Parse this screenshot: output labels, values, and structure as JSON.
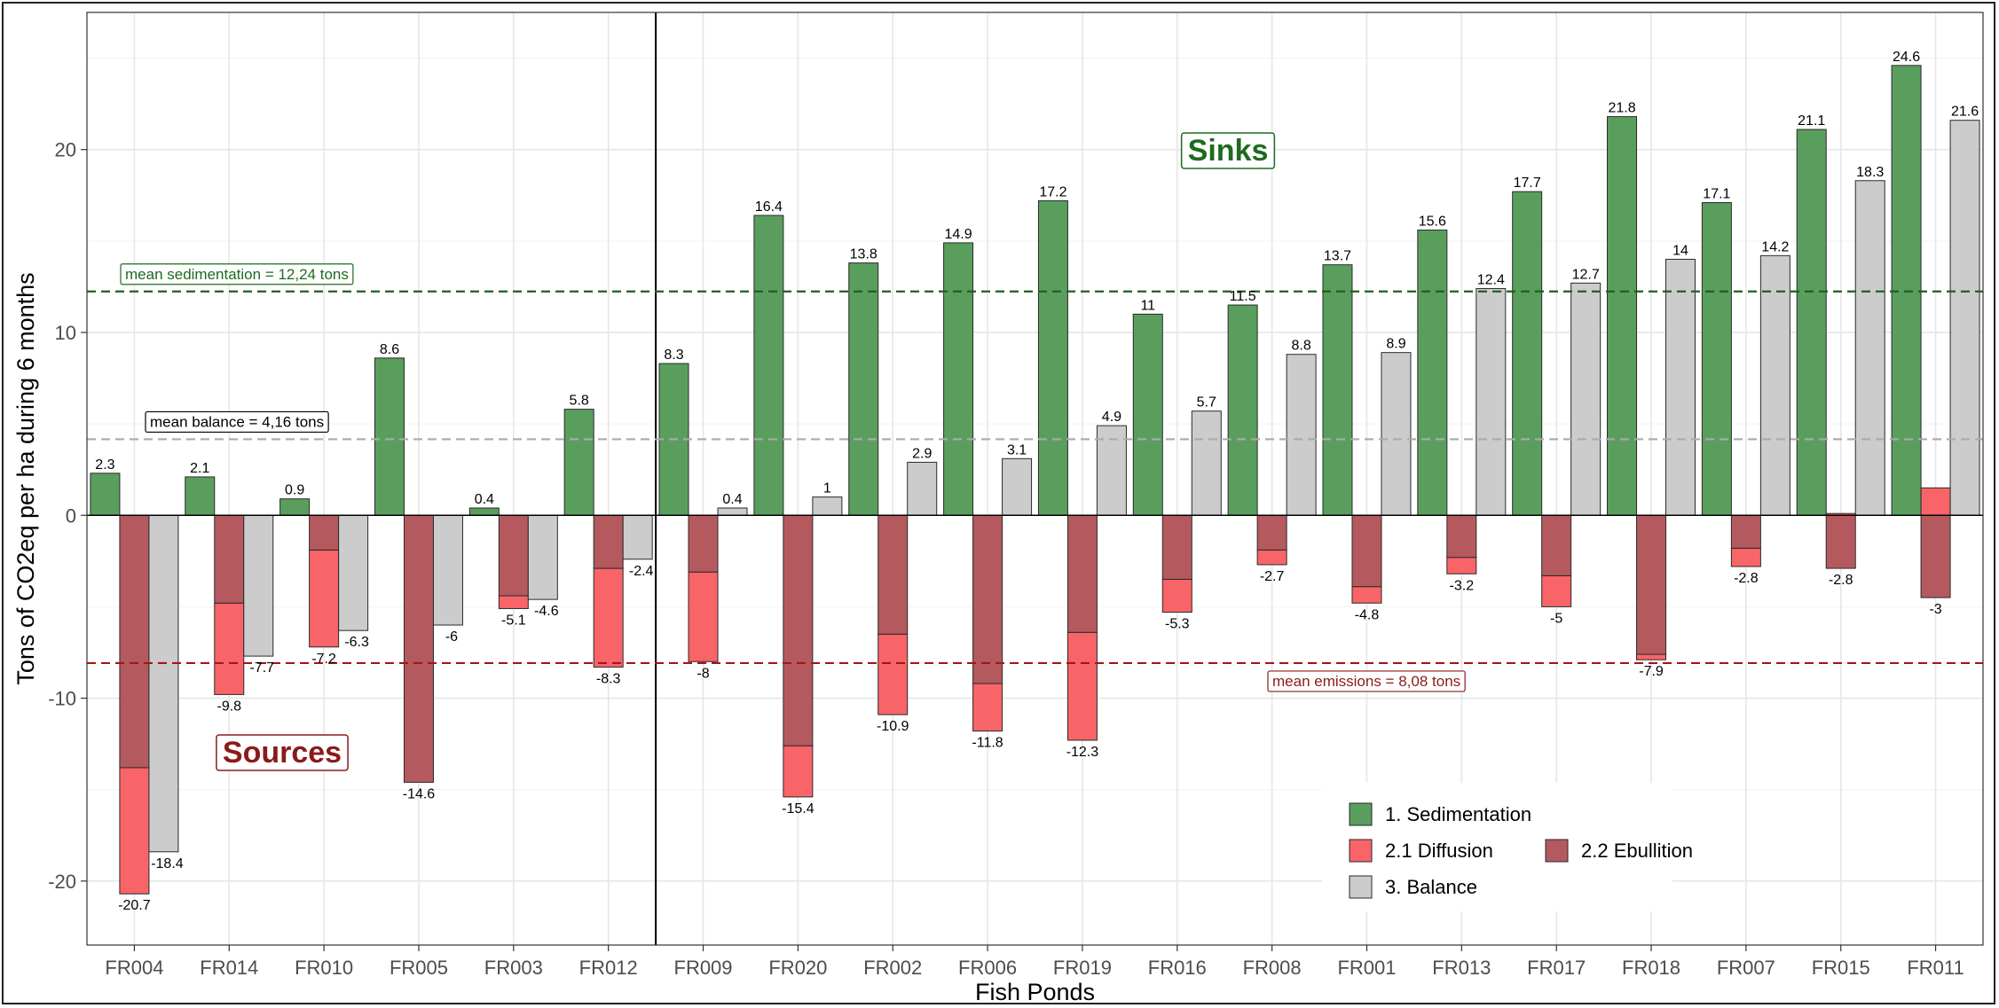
{
  "chart_data": {
    "type": "bar",
    "xlabel": "Fish Ponds",
    "ylabel": "Tons of CO2eq per ha during 6 months",
    "ylim": [
      -23.5,
      27.5
    ],
    "yticks": [
      -20,
      -10,
      0,
      10,
      20
    ],
    "grid": true,
    "legend_position": "bottom-right",
    "colors": {
      "sedimentation": "#5a9e5e",
      "diffusion": "#f86468",
      "ebullition": "#b45a5e",
      "balance": "#cccccc",
      "sinks_text": "#1e6b1e",
      "sources_text": "#8b1a1a",
      "mean_sedimentation_line": "#1f5f1f",
      "mean_emissions_line": "#a01818",
      "mean_balance_line": "#aaaaaa"
    },
    "legend": [
      {
        "key": "sedimentation",
        "label": "1. Sedimentation"
      },
      {
        "key": "diffusion",
        "label": "2.1 Diffusion"
      },
      {
        "key": "ebullition",
        "label": "2.2 Ebullition"
      },
      {
        "key": "balance",
        "label": "3. Balance"
      }
    ],
    "categories": [
      "FR004",
      "FR014",
      "FR010",
      "FR005",
      "FR003",
      "FR012",
      "FR009",
      "FR020",
      "FR002",
      "FR006",
      "FR019",
      "FR016",
      "FR008",
      "FR001",
      "FR013",
      "FR017",
      "FR018",
      "FR007",
      "FR015",
      "FR011"
    ],
    "sedimentation": [
      2.3,
      2.1,
      0.9,
      8.6,
      0.4,
      5.8,
      8.3,
      16.4,
      13.8,
      14.9,
      17.2,
      11,
      11.5,
      13.7,
      15.6,
      17.7,
      21.8,
      17.1,
      21.1,
      24.6
    ],
    "emissions_total": [
      -20.7,
      -9.8,
      -7.2,
      -14.6,
      -5.1,
      -8.3,
      -8,
      -15.4,
      -10.9,
      -11.8,
      -12.3,
      -5.3,
      -2.7,
      -4.8,
      -3.2,
      -5,
      -7.9,
      -2.8,
      -2.8,
      -3
    ],
    "ebullition_part": [
      -13.8,
      -4.8,
      -1.9,
      -14.6,
      -4.4,
      -2.9,
      -3.1,
      -12.6,
      -6.5,
      -9.2,
      -6.4,
      -3.5,
      -1.9,
      -3.9,
      -2.3,
      -3.3,
      -7.6,
      -1.8,
      -2.9,
      -4.5
    ],
    "diffusion_part": [
      -6.9,
      -5.0,
      -5.3,
      0,
      -0.7,
      -5.4,
      -4.9,
      -2.8,
      -4.4,
      -2.6,
      -5.9,
      -1.8,
      -0.8,
      -0.9,
      -0.9,
      -1.7,
      -0.3,
      -1.0,
      0.1,
      1.5
    ],
    "balance": [
      -18.4,
      -7.7,
      -6.3,
      -6,
      -4.6,
      -2.4,
      0.4,
      1,
      2.9,
      3.1,
      4.9,
      5.7,
      8.8,
      8.9,
      12.4,
      12.7,
      14,
      14.2,
      18.3,
      21.6
    ],
    "divider_after_category": "FR012",
    "mean_lines": [
      {
        "key": "sedimentation",
        "value": 12.24,
        "label": "mean sedimentation = 12,24 tons"
      },
      {
        "key": "balance",
        "value": 4.16,
        "label": "mean balance = 4,16 tons"
      },
      {
        "key": "emissions",
        "value": -8.08,
        "label": "mean emissions = 8,08 tons"
      }
    ],
    "annotations": {
      "sinks": "Sinks",
      "sources": "Sources"
    }
  }
}
